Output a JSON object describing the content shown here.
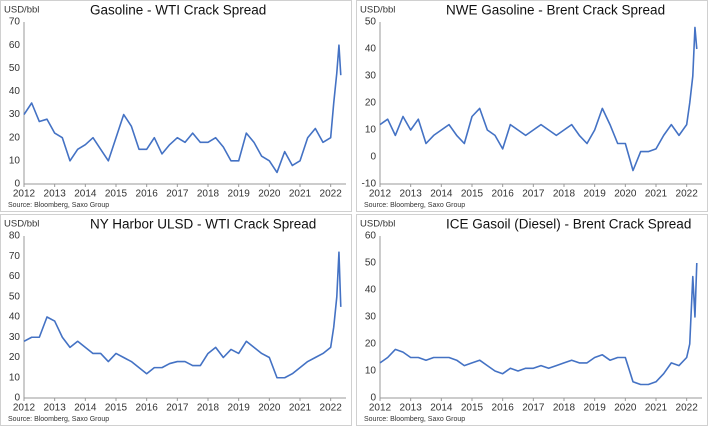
{
  "chart_data": [
    {
      "type": "line",
      "title": "Gasoline - WTI Crack Spread",
      "ylabel": "USD/bbl",
      "source": "Source: Bloomberg, Saxo Group",
      "xlim": [
        2012,
        2022.5
      ],
      "xticks": [
        2012,
        2013,
        2014,
        2015,
        2016,
        2017,
        2018,
        2019,
        2020,
        2021,
        2022
      ],
      "ylim": [
        0,
        70
      ],
      "yticks": [
        0,
        10,
        20,
        30,
        40,
        50,
        60,
        70
      ],
      "grid": false,
      "x": [
        2012,
        2012.25,
        2012.5,
        2012.75,
        2013,
        2013.25,
        2013.5,
        2013.75,
        2014,
        2014.25,
        2014.5,
        2014.75,
        2015,
        2015.25,
        2015.5,
        2015.75,
        2016,
        2016.25,
        2016.5,
        2016.75,
        2017,
        2017.25,
        2017.5,
        2017.75,
        2018,
        2018.25,
        2018.5,
        2018.75,
        2019,
        2019.25,
        2019.5,
        2019.75,
        2020,
        2020.25,
        2020.5,
        2020.75,
        2021,
        2021.25,
        2021.5,
        2021.75,
        2022,
        2022.1,
        2022.2,
        2022.27,
        2022.33
      ],
      "series": [
        {
          "color": "#4472c4",
          "values": [
            30,
            35,
            27,
            28,
            22,
            20,
            10,
            15,
            17,
            20,
            15,
            10,
            20,
            30,
            25,
            15,
            15,
            20,
            13,
            17,
            20,
            18,
            22,
            18,
            18,
            20,
            16,
            10,
            10,
            22,
            18,
            12,
            10,
            5,
            14,
            8,
            10,
            20,
            24,
            18,
            20,
            35,
            48,
            60,
            47
          ]
        }
      ]
    },
    {
      "type": "line",
      "title": "NWE Gasoline - Brent Crack Spread",
      "ylabel": "USD/bbl",
      "source": "Source: Bloomberg, Saxo Group",
      "xlim": [
        2012,
        2022.5
      ],
      "xticks": [
        2012,
        2013,
        2014,
        2015,
        2016,
        2017,
        2018,
        2019,
        2020,
        2021,
        2022
      ],
      "ylim": [
        -10,
        50
      ],
      "yticks": [
        -10,
        0,
        10,
        20,
        30,
        40,
        50
      ],
      "grid": false,
      "x": [
        2012,
        2012.25,
        2012.5,
        2012.75,
        2013,
        2013.25,
        2013.5,
        2013.75,
        2014,
        2014.25,
        2014.5,
        2014.75,
        2015,
        2015.25,
        2015.5,
        2015.75,
        2016,
        2016.25,
        2016.5,
        2016.75,
        2017,
        2017.25,
        2017.5,
        2017.75,
        2018,
        2018.25,
        2018.5,
        2018.75,
        2019,
        2019.25,
        2019.5,
        2019.75,
        2020,
        2020.25,
        2020.5,
        2020.75,
        2021,
        2021.25,
        2021.5,
        2021.75,
        2022,
        2022.1,
        2022.2,
        2022.27,
        2022.33
      ],
      "series": [
        {
          "color": "#4472c4",
          "values": [
            12,
            14,
            8,
            15,
            10,
            14,
            5,
            8,
            10,
            12,
            8,
            5,
            15,
            18,
            10,
            8,
            3,
            12,
            10,
            8,
            10,
            12,
            10,
            8,
            10,
            12,
            8,
            5,
            10,
            18,
            12,
            5,
            5,
            -5,
            2,
            2,
            3,
            8,
            12,
            8,
            12,
            20,
            30,
            48,
            40
          ]
        }
      ]
    },
    {
      "type": "line",
      "title": "NY Harbor ULSD - WTI Crack Spread",
      "ylabel": "USD/bbl",
      "source": "Source: Bloomberg, Saxo Group",
      "xlim": [
        2012,
        2022.5
      ],
      "xticks": [
        2012,
        2013,
        2014,
        2015,
        2016,
        2017,
        2018,
        2019,
        2020,
        2021,
        2022
      ],
      "ylim": [
        0,
        80
      ],
      "yticks": [
        0,
        10,
        20,
        30,
        40,
        50,
        60,
        70,
        80
      ],
      "grid": false,
      "x": [
        2012,
        2012.25,
        2012.5,
        2012.75,
        2013,
        2013.25,
        2013.5,
        2013.75,
        2014,
        2014.25,
        2014.5,
        2014.75,
        2015,
        2015.25,
        2015.5,
        2015.75,
        2016,
        2016.25,
        2016.5,
        2016.75,
        2017,
        2017.25,
        2017.5,
        2017.75,
        2018,
        2018.25,
        2018.5,
        2018.75,
        2019,
        2019.25,
        2019.5,
        2019.75,
        2020,
        2020.25,
        2020.5,
        2020.75,
        2021,
        2021.25,
        2021.5,
        2021.75,
        2022,
        2022.1,
        2022.2,
        2022.27,
        2022.33
      ],
      "series": [
        {
          "color": "#4472c4",
          "values": [
            28,
            30,
            30,
            40,
            38,
            30,
            25,
            28,
            25,
            22,
            22,
            18,
            22,
            20,
            18,
            15,
            12,
            15,
            15,
            17,
            18,
            18,
            16,
            16,
            22,
            25,
            20,
            24,
            22,
            28,
            25,
            22,
            20,
            10,
            10,
            12,
            15,
            18,
            20,
            22,
            25,
            35,
            50,
            72,
            45
          ]
        }
      ]
    },
    {
      "type": "line",
      "title": "ICE Gasoil (Diesel) - Brent Crack Spread",
      "ylabel": "USD/bbl",
      "source": "Source: Bloomberg, Saxo Group",
      "xlim": [
        2012,
        2022.5
      ],
      "xticks": [
        2012,
        2013,
        2014,
        2015,
        2016,
        2017,
        2018,
        2019,
        2020,
        2021,
        2022
      ],
      "ylim": [
        0,
        60
      ],
      "yticks": [
        0,
        10,
        20,
        30,
        40,
        50,
        60
      ],
      "grid": false,
      "x": [
        2012,
        2012.25,
        2012.5,
        2012.75,
        2013,
        2013.25,
        2013.5,
        2013.75,
        2014,
        2014.25,
        2014.5,
        2014.75,
        2015,
        2015.25,
        2015.5,
        2015.75,
        2016,
        2016.25,
        2016.5,
        2016.75,
        2017,
        2017.25,
        2017.5,
        2017.75,
        2018,
        2018.25,
        2018.5,
        2018.75,
        2019,
        2019.25,
        2019.5,
        2019.75,
        2020,
        2020.25,
        2020.5,
        2020.75,
        2021,
        2021.25,
        2021.5,
        2021.75,
        2022,
        2022.1,
        2022.2,
        2022.27,
        2022.33
      ],
      "series": [
        {
          "color": "#4472c4",
          "values": [
            13,
            15,
            18,
            17,
            15,
            15,
            14,
            15,
            15,
            15,
            14,
            12,
            13,
            14,
            12,
            10,
            9,
            11,
            10,
            11,
            11,
            12,
            11,
            12,
            13,
            14,
            13,
            13,
            15,
            16,
            14,
            15,
            15,
            6,
            5,
            5,
            6,
            9,
            13,
            12,
            15,
            20,
            45,
            30,
            50
          ]
        }
      ]
    }
  ]
}
